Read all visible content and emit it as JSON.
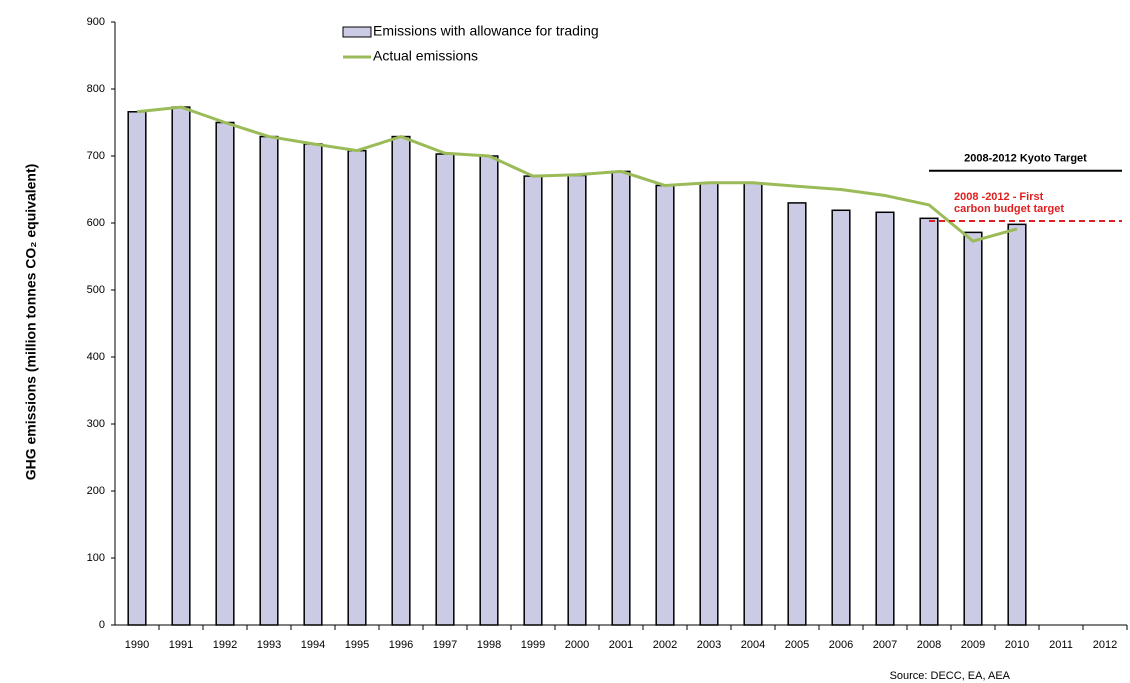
{
  "chart_data": {
    "type": "bar",
    "y_label": "GHG emissions (million tonnes CO₂ equivalent)",
    "source": "Source: DECC, EA, AEA",
    "categories": [
      "1990",
      "1991",
      "1992",
      "1993",
      "1994",
      "1995",
      "1996",
      "1997",
      "1998",
      "1999",
      "2000",
      "2001",
      "2002",
      "2003",
      "2004",
      "2005",
      "2006",
      "2007",
      "2008",
      "2009",
      "2010",
      "2011",
      "2012"
    ],
    "series": [
      {
        "name": "Emissions with allowance for trading",
        "type": "bar",
        "color": "#cbcbe5",
        "values": [
          766,
          773,
          750,
          729,
          718,
          708,
          729,
          703,
          700,
          670,
          671,
          677,
          656,
          660,
          660,
          630,
          619,
          616,
          607,
          586,
          598,
          null,
          null
        ]
      },
      {
        "name": "Actual emissions",
        "type": "line",
        "color": "#9bbb59",
        "values": [
          766,
          773,
          750,
          729,
          718,
          708,
          729,
          704,
          700,
          670,
          672,
          677,
          656,
          660,
          660,
          655,
          650,
          641,
          627,
          573,
          591,
          null,
          null
        ]
      }
    ],
    "reference_lines": [
      {
        "value": 678,
        "label": [
          "2008-2012  Kyoto Target"
        ],
        "color": "#000000",
        "dashed": false
      },
      {
        "value": 603,
        "label": [
          "2008 -2012  - First",
          "carbon budget  target"
        ],
        "color": "#e02020",
        "dashed": true
      }
    ],
    "ylim": [
      0,
      900
    ],
    "yticks": [
      0,
      100,
      200,
      300,
      400,
      500,
      600,
      700,
      800,
      900
    ],
    "grid": false
  }
}
